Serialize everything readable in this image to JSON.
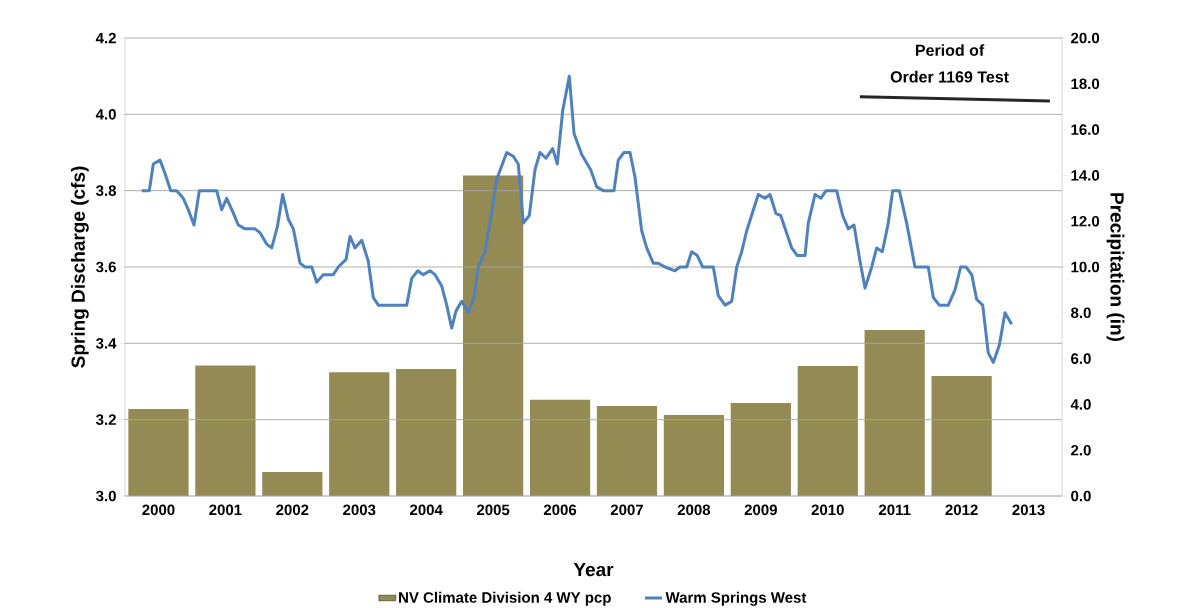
{
  "chart_data": {
    "type": "bar",
    "xlabel": "Year",
    "ylabel": "Spring Discharge (cfs)",
    "y2label": "Precipitation (in)",
    "x": [
      2000,
      2001,
      2002,
      2003,
      2004,
      2005,
      2006,
      2007,
      2008,
      2009,
      2010,
      2011,
      2012
    ],
    "xlim": [
      1999.5,
      2013.5
    ],
    "xticks": [
      2000,
      2001,
      2002,
      2003,
      2004,
      2005,
      2006,
      2007,
      2008,
      2009,
      2010,
      2011,
      2012,
      2013
    ],
    "series": [
      {
        "name": "NV Climate Division 4 WY pcp",
        "color": "#948a54",
        "axis": "y2",
        "values": [
          3.8,
          5.7,
          1.05,
          5.4,
          5.55,
          14.0,
          4.2,
          3.93,
          3.54,
          4.06,
          5.68,
          7.25,
          5.24
        ]
      },
      {
        "name": "Warm Springs West",
        "type": "line",
        "color": "#4f81bd",
        "x": [
          1999.75,
          1999.863,
          1999.923,
          2000.023,
          2000.098,
          2000.183,
          2000.272,
          2000.371,
          2000.446,
          2000.531,
          2000.61,
          2000.87,
          2000.945,
          2001.019,
          2001.109,
          2001.193,
          2001.293,
          2001.442,
          2001.517,
          2001.617,
          2001.692,
          2001.776,
          2001.856,
          2001.94,
          2002.015,
          2002.115,
          2002.189,
          2002.29,
          2002.364,
          2002.463,
          2002.612,
          2002.687,
          2002.802,
          2002.862,
          2002.936,
          2003.037,
          2003.135,
          2003.21,
          2003.285,
          2003.709,
          2003.784,
          2003.873,
          2003.957,
          2004.057,
          2004.132,
          2004.232,
          2004.307,
          2004.381,
          2004.446,
          2004.531,
          2004.629,
          2004.714,
          2004.779,
          2004.879,
          2004.953,
          2005.054,
          2005.203,
          2005.302,
          2005.376,
          2005.451,
          2005.541,
          2005.626,
          2005.701,
          2005.79,
          2005.89,
          2005.959,
          2006.04,
          2006.138,
          2006.209,
          2006.324,
          2006.458,
          2006.548,
          2006.646,
          2006.806,
          2006.87,
          2006.955,
          2007.045,
          2007.12,
          2007.22,
          2007.295,
          2007.393,
          2007.468,
          2007.568,
          2007.717,
          2007.792,
          2007.892,
          2007.967,
          2008.051,
          2008.131,
          2008.29,
          2008.364,
          2008.465,
          2008.565,
          2008.64,
          2008.714,
          2008.789,
          2008.962,
          2009.062,
          2009.137,
          2009.226,
          2009.297,
          2009.461,
          2009.545,
          2009.66,
          2009.709,
          2009.809,
          2009.899,
          2009.974,
          2010.133,
          2010.223,
          2010.307,
          2010.392,
          2010.482,
          2010.557,
          2010.656,
          2010.731,
          2010.815,
          2010.904,
          2010.97,
          2011.069,
          2011.179,
          2011.303,
          2011.502,
          2011.577,
          2011.666,
          2011.801,
          2011.901,
          2011.986,
          2012.065,
          2012.151,
          2012.225,
          2012.315,
          2012.398,
          2012.473,
          2012.563,
          2012.648,
          2012.748
        ],
        "values": [
          3.8,
          3.8,
          3.87,
          3.88,
          3.845,
          3.8,
          3.8,
          3.78,
          3.75,
          3.71,
          3.8,
          3.8,
          3.75,
          3.78,
          3.745,
          3.71,
          3.7,
          3.7,
          3.69,
          3.66,
          3.65,
          3.705,
          3.79,
          3.725,
          3.7,
          3.61,
          3.6,
          3.6,
          3.56,
          3.58,
          3.58,
          3.6,
          3.62,
          3.68,
          3.65,
          3.67,
          3.615,
          3.52,
          3.5,
          3.5,
          3.57,
          3.59,
          3.58,
          3.59,
          3.58,
          3.55,
          3.5,
          3.44,
          3.485,
          3.51,
          3.48,
          3.52,
          3.6,
          3.64,
          3.715,
          3.83,
          3.9,
          3.89,
          3.87,
          3.715,
          3.735,
          3.855,
          3.9,
          3.885,
          3.91,
          3.87,
          4.01,
          4.1,
          3.95,
          3.895,
          3.855,
          3.81,
          3.8,
          3.8,
          3.88,
          3.9,
          3.9,
          3.835,
          3.695,
          3.65,
          3.61,
          3.61,
          3.6,
          3.59,
          3.6,
          3.6,
          3.64,
          3.63,
          3.6,
          3.6,
          3.525,
          3.5,
          3.51,
          3.6,
          3.64,
          3.695,
          3.79,
          3.78,
          3.79,
          3.74,
          3.735,
          3.65,
          3.63,
          3.63,
          3.715,
          3.79,
          3.78,
          3.8,
          3.8,
          3.735,
          3.7,
          3.71,
          3.615,
          3.545,
          3.6,
          3.65,
          3.64,
          3.715,
          3.8,
          3.8,
          3.715,
          3.6,
          3.6,
          3.52,
          3.5,
          3.5,
          3.54,
          3.6,
          3.6,
          3.58,
          3.515,
          3.5,
          3.375,
          3.35,
          3.395,
          3.48,
          3.45
        ]
      },
      {
        "type": "line",
        "color": "#262626",
        "x": [
          2010.48,
          2013.32
        ],
        "values": [
          4.046,
          4.035
        ]
      }
    ],
    "ylim": [
      3,
      4.2
    ],
    "yticks": [
      {
        "value": 3,
        "label": "3.0"
      },
      {
        "value": 3.2,
        "label": "3.2"
      },
      {
        "value": 3.4,
        "label": "3.4"
      },
      {
        "value": 3.6,
        "label": "3.6"
      },
      {
        "value": 3.8,
        "label": "3.8"
      },
      {
        "value": 4,
        "label": "4.0"
      },
      {
        "value": 4.2,
        "label": "4.2"
      }
    ],
    "y2lim": [
      0,
      20
    ],
    "y2ticks": [
      {
        "value": 0,
        "label": "0.0"
      },
      {
        "value": 2,
        "label": "2.0"
      },
      {
        "value": 4,
        "label": "4.0"
      },
      {
        "value": 6,
        "label": "6.0"
      },
      {
        "value": 8,
        "label": "8.0"
      },
      {
        "value": 10,
        "label": "10.0"
      },
      {
        "value": 12,
        "label": "12.0"
      },
      {
        "value": 14,
        "label": "14.0"
      },
      {
        "value": 16,
        "label": "16.0"
      },
      {
        "value": 18,
        "label": "18.0"
      },
      {
        "value": 20,
        "label": "20.0"
      }
    ],
    "grid": "y",
    "legend": "bottom",
    "annotations": [
      "Period of",
      "Order 1169 Test"
    ]
  }
}
